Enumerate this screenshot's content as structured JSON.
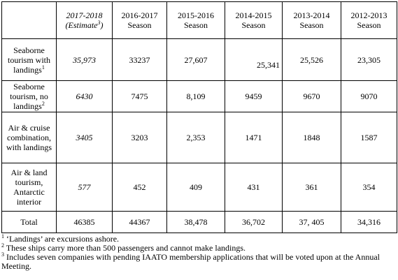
{
  "table": {
    "header": [
      {
        "line1": "2017-2018",
        "line2": "(Estimate",
        "sup": "3",
        "close": ")"
      },
      {
        "line1": "2016-2017",
        "line2": "Season"
      },
      {
        "line1": "2015-2016",
        "line2": "Season"
      },
      {
        "line1": "2014-2015",
        "line2": "Season"
      },
      {
        "line1": "2013-2014",
        "line2": "Season"
      },
      {
        "line1": "2012-2013",
        "line2": "Season"
      }
    ],
    "rows": [
      {
        "label": "Seaborne tourism with landings",
        "sup": "1",
        "cells": [
          "35,973",
          "33237",
          "27,607",
          "25,341",
          "25,526",
          "23,305"
        ]
      },
      {
        "label": "Seaborne tourism, no landings",
        "sup": "2",
        "cells": [
          "6430",
          "7475",
          "8,109",
          "9459",
          "9670",
          "9070"
        ]
      },
      {
        "label": "Air & cruise combination, with landings",
        "cells": [
          "3405",
          "3203",
          "2,353",
          "1471",
          "1848",
          "1587"
        ]
      },
      {
        "label": "Air & land tourism, Antarctic interior",
        "cells": [
          "577",
          "452",
          "409",
          "431",
          "361",
          "354"
        ]
      },
      {
        "label": "Total",
        "cells": [
          "46385",
          "44367",
          "38,478",
          "36,702",
          "37, 405",
          "34,316"
        ]
      }
    ]
  },
  "footnotes": [
    {
      "mark": "1",
      "text": " ‘Landings’ are excursions ashore."
    },
    {
      "mark": "2",
      "text": " These ships carry more than 500 passengers and cannot make landings."
    },
    {
      "mark": "3",
      "text": " Includes seven companies with pending IAATO membership applications that will be voted upon at the Annual Meeting."
    }
  ]
}
